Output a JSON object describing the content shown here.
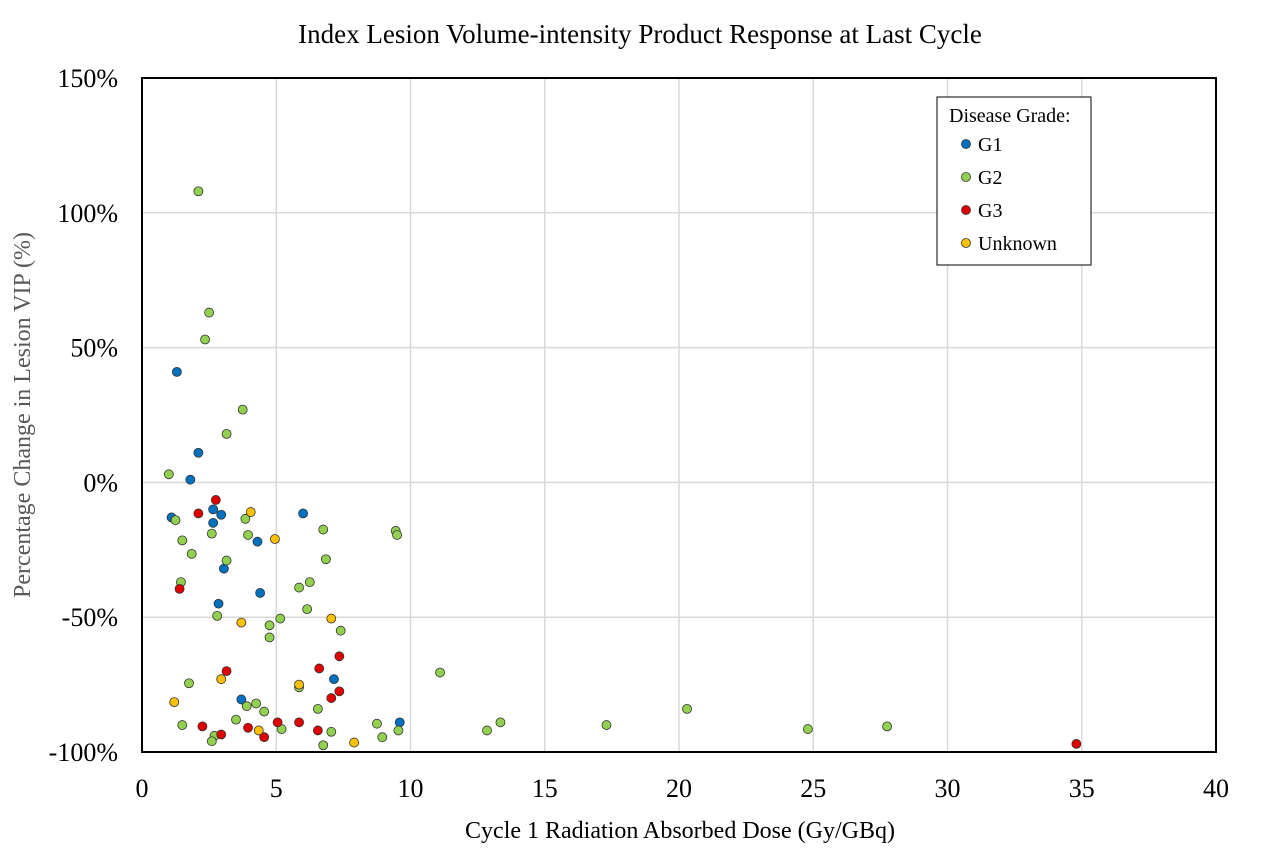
{
  "chart_data": {
    "type": "scatter",
    "title": "Index Lesion Volume-intensity Product Response at Last Cycle",
    "xlabel": "Cycle 1 Radiation Absorbed Dose (Gy/GBq)",
    "ylabel": "Percentage Change in Lesion VIP (%)",
    "xlim": [
      0,
      40
    ],
    "ylim": [
      -100,
      150
    ],
    "x_ticks": [
      0,
      5,
      10,
      15,
      20,
      25,
      30,
      35,
      40
    ],
    "y_ticks": [
      -100,
      -50,
      0,
      50,
      100,
      150
    ],
    "y_tick_labels": [
      "-100%",
      "-50%",
      "0%",
      "50%",
      "100%",
      "150%"
    ],
    "grid": true,
    "legend": {
      "title": "Disease Grade:",
      "position": "top-right"
    },
    "series": [
      {
        "name": "G1",
        "color": "#0070C0",
        "points": [
          [
            1.3,
            41
          ],
          [
            2.1,
            11
          ],
          [
            1.8,
            1
          ],
          [
            1.1,
            -13
          ],
          [
            2.65,
            -10
          ],
          [
            2.95,
            -12
          ],
          [
            2.65,
            -15
          ],
          [
            4.3,
            -22
          ],
          [
            3.05,
            -32
          ],
          [
            2.85,
            -45
          ],
          [
            4.4,
            -41
          ],
          [
            6.0,
            -11.5
          ],
          [
            3.7,
            -80.5
          ],
          [
            7.15,
            -73
          ],
          [
            9.6,
            -89
          ]
        ]
      },
      {
        "name": "G2",
        "color": "#92D050",
        "points": [
          [
            2.1,
            108
          ],
          [
            2.5,
            63
          ],
          [
            2.35,
            53
          ],
          [
            3.75,
            27
          ],
          [
            3.15,
            18
          ],
          [
            1.0,
            3
          ],
          [
            1.25,
            -14
          ],
          [
            1.5,
            -21.5
          ],
          [
            1.85,
            -26.5
          ],
          [
            2.6,
            -19
          ],
          [
            3.85,
            -13.5
          ],
          [
            3.95,
            -19.5
          ],
          [
            3.15,
            -29
          ],
          [
            1.45,
            -37
          ],
          [
            2.8,
            -49.5
          ],
          [
            4.75,
            -53
          ],
          [
            4.75,
            -57.5
          ],
          [
            5.15,
            -50.5
          ],
          [
            5.85,
            -39
          ],
          [
            6.25,
            -37
          ],
          [
            6.15,
            -47
          ],
          [
            6.85,
            -28.5
          ],
          [
            6.75,
            -17.5
          ],
          [
            9.45,
            -18
          ],
          [
            9.5,
            -19.5
          ],
          [
            7.4,
            -55
          ],
          [
            11.1,
            -70.5
          ],
          [
            1.75,
            -74.5
          ],
          [
            1.5,
            -90
          ],
          [
            2.7,
            -94
          ],
          [
            2.6,
            -96
          ],
          [
            3.5,
            -88
          ],
          [
            3.9,
            -83
          ],
          [
            4.25,
            -82
          ],
          [
            4.55,
            -85
          ],
          [
            5.2,
            -91.5
          ],
          [
            5.85,
            -76
          ],
          [
            6.55,
            -84
          ],
          [
            6.75,
            -97.5
          ],
          [
            7.05,
            -92.5
          ],
          [
            8.75,
            -89.5
          ],
          [
            8.95,
            -94.5
          ],
          [
            9.55,
            -92
          ],
          [
            12.85,
            -92
          ],
          [
            13.35,
            -89
          ],
          [
            17.3,
            -90
          ],
          [
            20.3,
            -84
          ],
          [
            24.8,
            -91.5
          ],
          [
            27.75,
            -90.5
          ]
        ]
      },
      {
        "name": "G3",
        "color": "#E00000",
        "points": [
          [
            2.75,
            -6.5
          ],
          [
            2.1,
            -11.5
          ],
          [
            1.4,
            -39.5
          ],
          [
            3.15,
            -70
          ],
          [
            6.6,
            -69
          ],
          [
            7.35,
            -64.5
          ],
          [
            7.35,
            -77.5
          ],
          [
            7.05,
            -80
          ],
          [
            2.25,
            -90.5
          ],
          [
            2.95,
            -93.5
          ],
          [
            3.95,
            -91
          ],
          [
            4.55,
            -94.5
          ],
          [
            5.05,
            -89
          ],
          [
            5.85,
            -89
          ],
          [
            6.55,
            -92
          ],
          [
            34.8,
            -97
          ]
        ]
      },
      {
        "name": "Unknown",
        "color": "#FFC000",
        "points": [
          [
            4.05,
            -11
          ],
          [
            4.95,
            -21
          ],
          [
            3.7,
            -52
          ],
          [
            7.05,
            -50.5
          ],
          [
            2.95,
            -73
          ],
          [
            5.85,
            -75
          ],
          [
            1.2,
            -81.5
          ],
          [
            4.35,
            -92
          ],
          [
            7.9,
            -96.5
          ]
        ]
      }
    ]
  }
}
